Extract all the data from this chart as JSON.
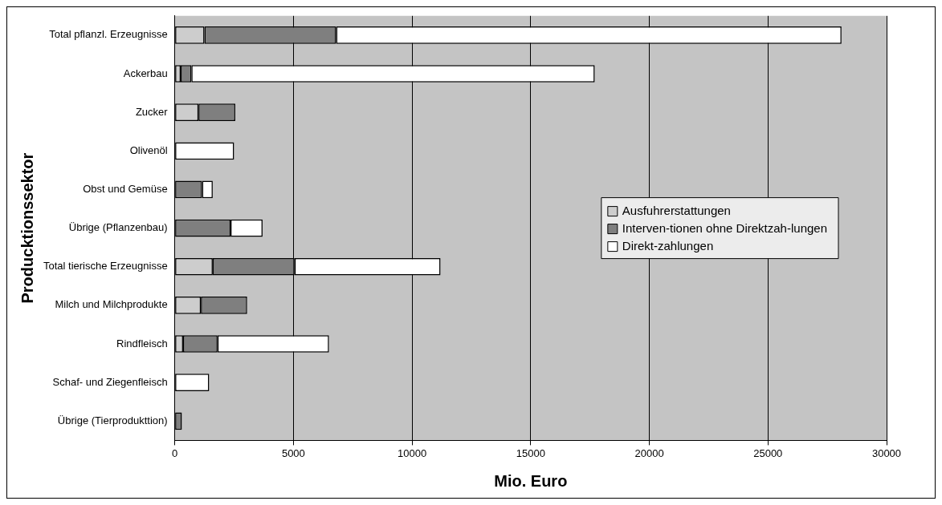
{
  "chart_data": {
    "type": "bar",
    "orientation": "horizontal",
    "stacked": true,
    "xlabel": "Mio. Euro",
    "ylabel": "Producktionssektor",
    "categories": [
      "Total pflanzl. Erzeugnisse",
      "Ackerbau",
      "Zucker",
      "Olivenöl",
      "Obst und Gemüse",
      "Übrige (Pflanzenbau)",
      "Total tierische Erzeugnisse",
      "Milch und Milchprodukte",
      "Rindfleisch",
      "Schaf- und Ziegenfleisch",
      "Übrige (Tierprodukttion)"
    ],
    "series": [
      {
        "name": "Ausfuhrerstattungen",
        "color": "#cdcdcd",
        "values": [
          1250,
          250,
          1000,
          null,
          null,
          null,
          1600,
          1100,
          350,
          null,
          null
        ]
      },
      {
        "name": "Interven-tionen ohne Direktzah-lungen",
        "color": "#7f7f7f",
        "values": [
          5550,
          450,
          1550,
          null,
          1150,
          2350,
          3450,
          1950,
          1450,
          null,
          300
        ]
      },
      {
        "name": "Direkt-zahlungen",
        "color": "#ffffff",
        "values": [
          21300,
          17000,
          null,
          2500,
          450,
          1350,
          6150,
          null,
          4700,
          1450,
          null
        ]
      }
    ],
    "xlim": [
      0,
      30000
    ],
    "xticks": [
      0,
      5000,
      10000,
      15000,
      20000,
      25000,
      30000
    ],
    "grid": "x",
    "legend": "right"
  }
}
